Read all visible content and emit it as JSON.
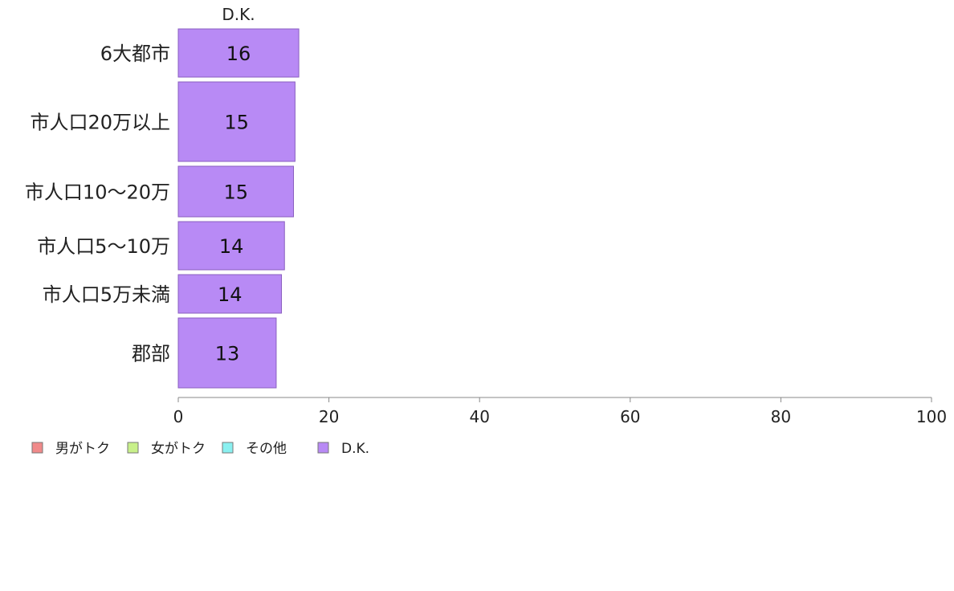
{
  "chart_data": {
    "type": "bar",
    "orientation": "horizontal",
    "stacked": true,
    "categories": [
      "6大都市",
      "市人口20万以上",
      "市人口10〜20万",
      "市人口5〜10万",
      "市人口5万未満",
      "郡部"
    ],
    "category_weights": [
      1.0,
      1.65,
      1.05,
      1.0,
      0.8,
      1.45
    ],
    "series": [
      {
        "name": "男がトク",
        "color": "#f08a8a",
        "values": [
          null,
          null,
          null,
          null,
          null,
          null
        ]
      },
      {
        "name": "女がトク",
        "color": "#c8f08a",
        "values": [
          null,
          null,
          null,
          null,
          null,
          null
        ]
      },
      {
        "name": "その他",
        "color": "#8af0f0",
        "values": [
          null,
          null,
          null,
          null,
          null,
          null
        ]
      },
      {
        "name": "D.K.",
        "color": "#b88af5",
        "values": [
          16,
          15.5,
          15.3,
          14.1,
          13.7,
          13
        ]
      }
    ],
    "data_labels": [
      "16",
      "15",
      "15",
      "14",
      "14",
      "13"
    ],
    "series_header": "D.K.",
    "xticks": [
      "0",
      "20",
      "40",
      "60",
      "80",
      "100"
    ],
    "xlim": [
      0,
      100
    ],
    "grid": false,
    "legend": {
      "position": "bottom-left"
    }
  }
}
